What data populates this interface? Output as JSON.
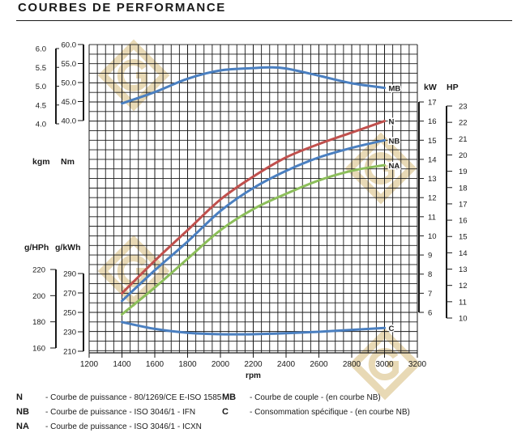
{
  "page_title": "COURBES DE PERFORMANCE",
  "legend": [
    {
      "code": "N",
      "desc": "Courbe de puissance - 80/1269/CE E-ISO 1585"
    },
    {
      "code": "NB",
      "desc": "Courbe de puissance - ISO 3046/1 - IFN"
    },
    {
      "code": "NA",
      "desc": "Courbe de puissance - ISO 3046/1 - ICXN"
    },
    {
      "code": "MB",
      "desc": "Courbe de couple - (en courbe NB)"
    },
    {
      "code": "C",
      "desc": "Consommation spécifique - (en courbe NB)"
    }
  ],
  "chart_data": {
    "type": "line",
    "xlabel": "rpm",
    "x_ticks": [
      1200,
      1400,
      1600,
      1800,
      2000,
      2200,
      2400,
      2600,
      2800,
      3000,
      3200
    ],
    "xlim": [
      1200,
      3200
    ],
    "grid": true,
    "axes": {
      "kgm": {
        "label": "kgm",
        "ticks": [
          "6.0",
          "5.5",
          "5.0",
          "4.5",
          "4.0"
        ],
        "range": [
          4.0,
          6.0
        ]
      },
      "nm": {
        "label": "Nm",
        "ticks": [
          "60.0",
          "55.0",
          "50.0",
          "45.0",
          "40.0"
        ],
        "range": [
          40,
          60
        ]
      },
      "kw": {
        "label": "kW",
        "ticks": [
          "17",
          "16",
          "15",
          "14",
          "13",
          "12",
          "11",
          "10",
          "9",
          "8",
          "7",
          "6"
        ],
        "range": [
          6,
          17
        ]
      },
      "hp": {
        "label": "HP",
        "ticks": [
          "23",
          "22",
          "21",
          "20",
          "19",
          "18",
          "17",
          "16",
          "15",
          "14",
          "13",
          "12",
          "11",
          "10"
        ],
        "range": [
          10,
          23
        ]
      },
      "ghph": {
        "label": "g/HPh",
        "ticks": [
          "220",
          "200",
          "180",
          "160"
        ],
        "range": [
          160,
          220
        ]
      },
      "gkwh": {
        "label": "g/kWh",
        "ticks": [
          "290",
          "270",
          "250",
          "230",
          "210"
        ],
        "range": [
          210,
          290
        ]
      }
    },
    "series": [
      {
        "name": "MB",
        "axis": "nm",
        "color": "#4a7fc0",
        "x": [
          1400,
          1600,
          1800,
          2000,
          2200,
          2300,
          2400,
          2600,
          2800,
          3000
        ],
        "values": [
          44.5,
          47.5,
          51.0,
          53.2,
          53.8,
          54.0,
          53.7,
          51.8,
          49.8,
          48.6
        ]
      },
      {
        "name": "N",
        "axis": "kw",
        "color": "#c0504d",
        "x": [
          1400,
          1600,
          1800,
          2000,
          2200,
          2400,
          2600,
          2800,
          3000
        ],
        "values": [
          7.0,
          8.7,
          10.3,
          11.9,
          13.1,
          14.1,
          14.8,
          15.4,
          16.0
        ]
      },
      {
        "name": "NB",
        "axis": "kw",
        "color": "#4a7fc0",
        "x": [
          1400,
          1600,
          1800,
          2000,
          2200,
          2400,
          2600,
          2800,
          3000
        ],
        "values": [
          6.6,
          8.2,
          9.7,
          11.3,
          12.5,
          13.4,
          14.1,
          14.6,
          15.0
        ]
      },
      {
        "name": "NA",
        "axis": "kw",
        "color": "#8cbe5a",
        "x": [
          1400,
          1600,
          1800,
          2000,
          2200,
          2400,
          2600,
          2800,
          3000
        ],
        "values": [
          5.9,
          7.3,
          8.8,
          10.3,
          11.4,
          12.2,
          12.9,
          13.4,
          13.7
        ]
      },
      {
        "name": "C",
        "axis": "gkwh",
        "color": "#4a7fc0",
        "x": [
          1400,
          1600,
          1800,
          2000,
          2200,
          2400,
          2600,
          2800,
          3000
        ],
        "values": [
          240,
          233,
          229,
          227.5,
          227.5,
          228.5,
          230,
          232,
          234
        ]
      }
    ],
    "watermark_color": "#e8d9b5"
  }
}
